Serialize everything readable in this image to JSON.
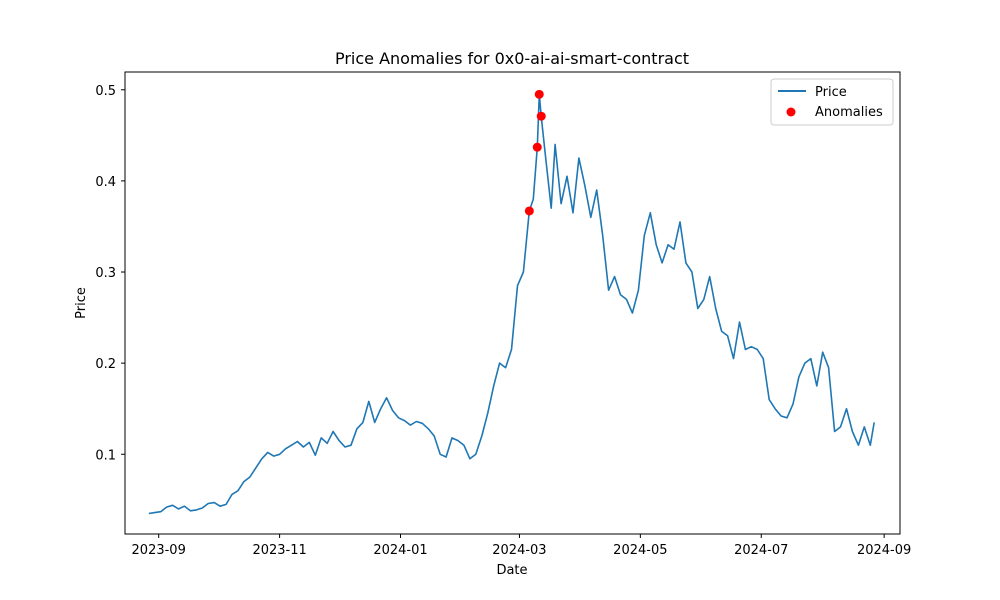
{
  "chart_data": {
    "type": "line",
    "title": "Price Anomalies for 0x0-ai-ai-smart-contract",
    "xlabel": "Date",
    "ylabel": "Price",
    "xlim": [
      "2023-08-15",
      "2024-09-09"
    ],
    "ylim": [
      0.0125,
      0.5195
    ],
    "x_ticks": [
      "2023-09-01",
      "2023-11-01",
      "2024-01-01",
      "2024-03-01",
      "2024-05-01",
      "2024-07-01",
      "2024-09-01"
    ],
    "x_tick_labels": [
      "2023-09",
      "2023-11",
      "2024-01",
      "2024-03",
      "2024-05",
      "2024-07",
      "2024-09"
    ],
    "y_ticks": [
      0.1,
      0.2,
      0.3,
      0.4,
      0.5
    ],
    "y_tick_labels": [
      "0.1",
      "0.2",
      "0.3",
      "0.4",
      "0.5"
    ],
    "grid": false,
    "legend_position": "top-right",
    "series": [
      {
        "name": "Price",
        "color": "#1f77b4",
        "points": [
          [
            "2023-08-27",
            0.035
          ],
          [
            "2023-08-30",
            0.036
          ],
          [
            "2023-09-02",
            0.037
          ],
          [
            "2023-09-05",
            0.042
          ],
          [
            "2023-09-08",
            0.044
          ],
          [
            "2023-09-11",
            0.04
          ],
          [
            "2023-09-14",
            0.043
          ],
          [
            "2023-09-17",
            0.038
          ],
          [
            "2023-09-20",
            0.039
          ],
          [
            "2023-09-23",
            0.041
          ],
          [
            "2023-09-26",
            0.046
          ],
          [
            "2023-09-29",
            0.047
          ],
          [
            "2023-10-02",
            0.043
          ],
          [
            "2023-10-05",
            0.045
          ],
          [
            "2023-10-08",
            0.056
          ],
          [
            "2023-10-11",
            0.06
          ],
          [
            "2023-10-14",
            0.07
          ],
          [
            "2023-10-17",
            0.075
          ],
          [
            "2023-10-20",
            0.085
          ],
          [
            "2023-10-23",
            0.095
          ],
          [
            "2023-10-26",
            0.102
          ],
          [
            "2023-10-29",
            0.098
          ],
          [
            "2023-11-01",
            0.1
          ],
          [
            "2023-11-04",
            0.106
          ],
          [
            "2023-11-07",
            0.11
          ],
          [
            "2023-11-10",
            0.114
          ],
          [
            "2023-11-13",
            0.108
          ],
          [
            "2023-11-16",
            0.113
          ],
          [
            "2023-11-19",
            0.099
          ],
          [
            "2023-11-22",
            0.118
          ],
          [
            "2023-11-25",
            0.112
          ],
          [
            "2023-11-28",
            0.125
          ],
          [
            "2023-12-01",
            0.115
          ],
          [
            "2023-12-04",
            0.108
          ],
          [
            "2023-12-07",
            0.11
          ],
          [
            "2023-12-10",
            0.128
          ],
          [
            "2023-12-13",
            0.135
          ],
          [
            "2023-12-16",
            0.158
          ],
          [
            "2023-12-19",
            0.135
          ],
          [
            "2023-12-22",
            0.15
          ],
          [
            "2023-12-25",
            0.162
          ],
          [
            "2023-12-28",
            0.148
          ],
          [
            "2023-12-31",
            0.14
          ],
          [
            "2024-01-03",
            0.137
          ],
          [
            "2024-01-06",
            0.132
          ],
          [
            "2024-01-09",
            0.136
          ],
          [
            "2024-01-12",
            0.134
          ],
          [
            "2024-01-15",
            0.128
          ],
          [
            "2024-01-18",
            0.12
          ],
          [
            "2024-01-21",
            0.1
          ],
          [
            "2024-01-24",
            0.097
          ],
          [
            "2024-01-27",
            0.118
          ],
          [
            "2024-01-30",
            0.115
          ],
          [
            "2024-02-02",
            0.11
          ],
          [
            "2024-02-05",
            0.095
          ],
          [
            "2024-02-08",
            0.1
          ],
          [
            "2024-02-11",
            0.12
          ],
          [
            "2024-02-14",
            0.145
          ],
          [
            "2024-02-17",
            0.175
          ],
          [
            "2024-02-20",
            0.2
          ],
          [
            "2024-02-23",
            0.195
          ],
          [
            "2024-02-26",
            0.215
          ],
          [
            "2024-02-29",
            0.285
          ],
          [
            "2024-03-03",
            0.3
          ],
          [
            "2024-03-06",
            0.367
          ],
          [
            "2024-03-08",
            0.38
          ],
          [
            "2024-03-10",
            0.437
          ],
          [
            "2024-03-11",
            0.495
          ],
          [
            "2024-03-12",
            0.471
          ],
          [
            "2024-03-14",
            0.43
          ],
          [
            "2024-03-17",
            0.37
          ],
          [
            "2024-03-19",
            0.44
          ],
          [
            "2024-03-22",
            0.375
          ],
          [
            "2024-03-25",
            0.405
          ],
          [
            "2024-03-28",
            0.365
          ],
          [
            "2024-03-31",
            0.425
          ],
          [
            "2024-04-03",
            0.395
          ],
          [
            "2024-04-06",
            0.36
          ],
          [
            "2024-04-09",
            0.39
          ],
          [
            "2024-04-12",
            0.34
          ],
          [
            "2024-04-15",
            0.28
          ],
          [
            "2024-04-18",
            0.295
          ],
          [
            "2024-04-21",
            0.275
          ],
          [
            "2024-04-24",
            0.27
          ],
          [
            "2024-04-27",
            0.255
          ],
          [
            "2024-04-30",
            0.28
          ],
          [
            "2024-05-03",
            0.34
          ],
          [
            "2024-05-06",
            0.365
          ],
          [
            "2024-05-09",
            0.33
          ],
          [
            "2024-05-12",
            0.31
          ],
          [
            "2024-05-15",
            0.33
          ],
          [
            "2024-05-18",
            0.325
          ],
          [
            "2024-05-21",
            0.355
          ],
          [
            "2024-05-24",
            0.31
          ],
          [
            "2024-05-27",
            0.3
          ],
          [
            "2024-05-30",
            0.26
          ],
          [
            "2024-06-02",
            0.27
          ],
          [
            "2024-06-05",
            0.295
          ],
          [
            "2024-06-08",
            0.26
          ],
          [
            "2024-06-11",
            0.235
          ],
          [
            "2024-06-14",
            0.23
          ],
          [
            "2024-06-17",
            0.205
          ],
          [
            "2024-06-20",
            0.245
          ],
          [
            "2024-06-23",
            0.215
          ],
          [
            "2024-06-26",
            0.218
          ],
          [
            "2024-06-29",
            0.215
          ],
          [
            "2024-07-02",
            0.205
          ],
          [
            "2024-07-05",
            0.16
          ],
          [
            "2024-07-08",
            0.15
          ],
          [
            "2024-07-11",
            0.142
          ],
          [
            "2024-07-14",
            0.14
          ],
          [
            "2024-07-17",
            0.155
          ],
          [
            "2024-07-20",
            0.185
          ],
          [
            "2024-07-23",
            0.2
          ],
          [
            "2024-07-26",
            0.205
          ],
          [
            "2024-07-29",
            0.175
          ],
          [
            "2024-08-01",
            0.212
          ],
          [
            "2024-08-04",
            0.195
          ],
          [
            "2024-08-07",
            0.125
          ],
          [
            "2024-08-10",
            0.13
          ],
          [
            "2024-08-13",
            0.15
          ],
          [
            "2024-08-16",
            0.125
          ],
          [
            "2024-08-19",
            0.11
          ],
          [
            "2024-08-22",
            0.13
          ],
          [
            "2024-08-25",
            0.11
          ],
          [
            "2024-08-27",
            0.135
          ]
        ]
      },
      {
        "name": "Anomalies",
        "color": "#ff0000",
        "kind": "scatter",
        "points": [
          [
            "2024-03-06",
            0.367
          ],
          [
            "2024-03-10",
            0.437
          ],
          [
            "2024-03-11",
            0.495
          ],
          [
            "2024-03-12",
            0.471
          ]
        ]
      }
    ]
  }
}
